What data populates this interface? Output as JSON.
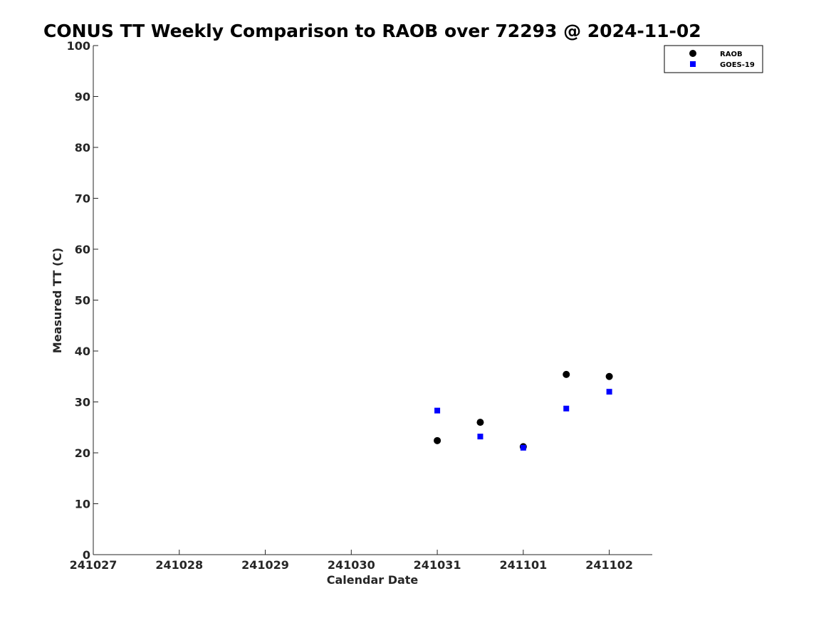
{
  "chart_data": {
    "type": "scatter",
    "title": "CONUS TT Weekly Comparison to RAOB over 72293 @ 2024-11-02",
    "xlabel": "Calendar Date",
    "ylabel": "Measured TT (C)",
    "x_tick_labels": [
      "241027",
      "241028",
      "241029",
      "241030",
      "241031",
      "241101",
      "241102"
    ],
    "x_tick_values": [
      0,
      1,
      2,
      3,
      4,
      5,
      6
    ],
    "xlim": [
      0,
      6.5
    ],
    "ylim": [
      0,
      100
    ],
    "y_ticks": [
      0,
      10,
      20,
      30,
      40,
      50,
      60,
      70,
      80,
      90,
      100
    ],
    "grid": false,
    "legend_position": "top-right",
    "series": [
      {
        "name": "RAOB",
        "color": "#000000",
        "marker": "circle",
        "x": [
          4,
          4.5,
          5,
          5.5,
          6
        ],
        "y": [
          22.4,
          26.0,
          21.2,
          35.4,
          35.0
        ]
      },
      {
        "name": "GOES-19",
        "color": "#0000ff",
        "marker": "square",
        "x": [
          4,
          4.5,
          5,
          5.5,
          6
        ],
        "y": [
          28.3,
          23.2,
          21.0,
          28.7,
          32.0
        ]
      }
    ]
  }
}
